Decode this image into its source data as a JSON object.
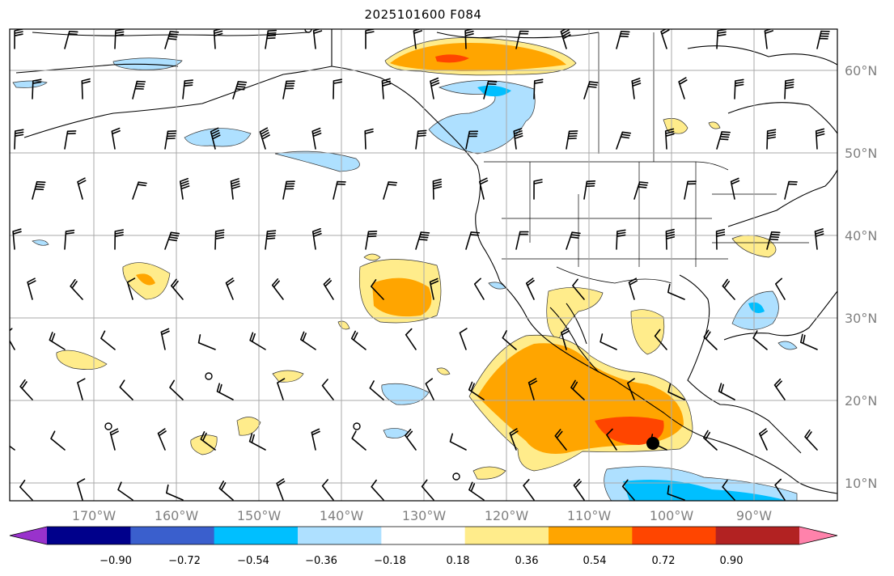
{
  "title": "2025101600 F084",
  "longitude_labels": [
    "170°W",
    "160°W",
    "150°W",
    "140°W",
    "130°W",
    "120°W",
    "110°W",
    "100°W",
    "90°W"
  ],
  "latitude_labels": [
    "60°N",
    "50°N",
    "40°N",
    "30°N",
    "20°N",
    "10°N"
  ],
  "colorbar": {
    "colors": [
      "#9932cc",
      "#00008b",
      "#3a5fcd",
      "#00bfff",
      "#aee0ff",
      "#ffffff",
      "#ffec8b",
      "#ffa500",
      "#ff4500",
      "#b22222",
      "#ff82ab"
    ],
    "tick_labels": [
      "−0.90",
      "−0.72",
      "−0.54",
      "−0.36",
      "−0.18",
      "0.18",
      "0.36",
      "0.54",
      "0.72",
      "0.90"
    ]
  },
  "marker": {
    "label": "",
    "color": "#000000"
  }
}
